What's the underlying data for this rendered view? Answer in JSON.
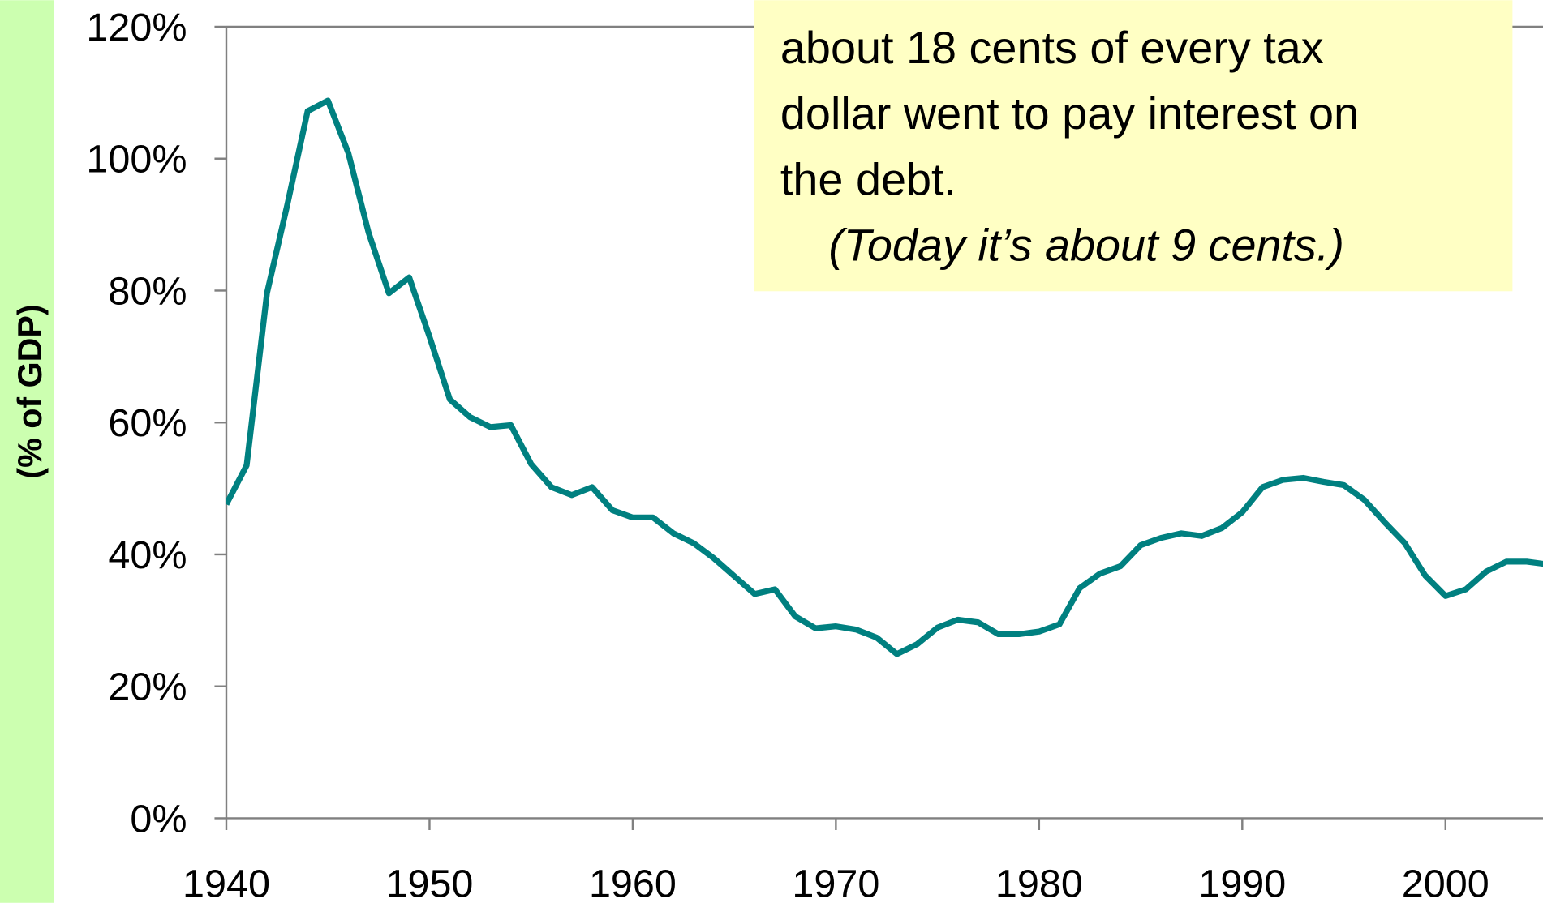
{
  "chart_data": {
    "type": "line",
    "y_label": "(% of GDP)",
    "annotation": [
      "about 18 cents of every tax",
      "dollar went to pay interest on",
      "the debt.",
      "(Today it’s about 9 cents.)"
    ],
    "x": [
      1940,
      1941,
      1942,
      1943,
      1944,
      1945,
      1946,
      1947,
      1948,
      1949,
      1950,
      1951,
      1952,
      1953,
      1954,
      1955,
      1956,
      1957,
      1958,
      1959,
      1960,
      1961,
      1962,
      1963,
      1964,
      1965,
      1966,
      1967,
      1968,
      1969,
      1970,
      1971,
      1972,
      1973,
      1974,
      1975,
      1976,
      1977,
      1978,
      1979,
      1980,
      1981,
      1982,
      1983,
      1984,
      1985,
      1986,
      1987,
      1988,
      1989,
      1990,
      1991,
      1992,
      1993,
      1994,
      1995,
      1996,
      1997,
      1998,
      1999,
      2000,
      2001,
      2002,
      2003,
      2004,
      2005
    ],
    "series": [
      {
        "color": "#008080",
        "values": [
          47.6,
          53.5,
          79.6,
          93,
          107.2,
          108.8,
          100.9,
          88.8,
          79.6,
          82,
          73,
          63.5,
          60.8,
          59.3,
          59.6,
          53.7,
          50.2,
          49,
          50.2,
          46.7,
          45.6,
          45.6,
          43.2,
          41.7,
          39.4,
          36.7,
          34,
          34.7,
          30.6,
          28.8,
          29.1,
          28.6,
          27.4,
          24.9,
          26.4,
          28.9,
          30.1,
          29.7,
          27.9,
          27.9,
          28.3,
          29.4,
          34.9,
          37.1,
          38.2,
          41.4,
          42.5,
          43.2,
          42.8,
          44,
          46.4,
          50.2,
          51.3,
          51.6,
          51,
          50.5,
          48.3,
          44.9,
          41.7,
          36.8,
          33.7,
          34.7,
          37.4,
          38.9,
          38.9,
          38.5
        ]
      }
    ],
    "xlim": [
      1940,
      2004.8
    ],
    "ylim": [
      0,
      120
    ],
    "xticks": [
      1940,
      1950,
      1960,
      1970,
      1980,
      1990,
      2000
    ],
    "yticks": [
      {
        "value": 0,
        "label": "0%"
      },
      {
        "value": 20,
        "label": "20%"
      },
      {
        "value": 40,
        "label": "40%"
      },
      {
        "value": 60,
        "label": "60%"
      },
      {
        "value": 80,
        "label": "80%"
      },
      {
        "value": 100,
        "label": "100%"
      },
      {
        "value": 120,
        "label": "120%"
      }
    ]
  }
}
